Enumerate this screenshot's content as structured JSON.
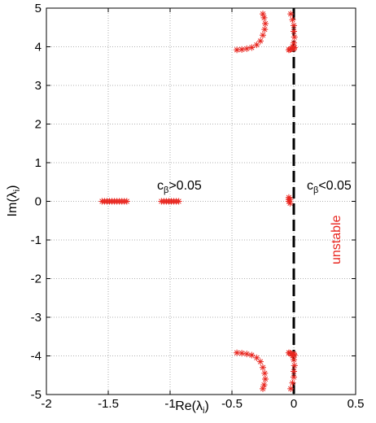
{
  "chart_data": {
    "type": "scatter",
    "title": "",
    "xlabel_main": "Re(λ",
    "xlabel_sub": "i",
    "xlabel_close": ")",
    "ylabel_main": "Im(λ",
    "ylabel_sub": "i",
    "ylabel_close": ")",
    "xlim": [
      -2,
      0.5
    ],
    "ylim": [
      -5,
      5
    ],
    "xticks": [
      -2,
      -1.5,
      -1,
      -0.5,
      0,
      0.5
    ],
    "xtick_labels": [
      "-2",
      "-1.5",
      "-1",
      "-0.5",
      "0",
      "0.5"
    ],
    "yticks": [
      -5,
      -4,
      -3,
      -2,
      -1,
      0,
      1,
      2,
      3,
      4,
      5
    ],
    "ytick_labels": [
      "-5",
      "-4",
      "-3",
      "-2",
      "-1",
      "0",
      "1",
      "2",
      "3",
      "4",
      "5"
    ],
    "grid": true,
    "marker": "*",
    "marker_color": "#e8251e",
    "boundary_line": {
      "x": 0,
      "style": "dashed",
      "color": "#000000"
    },
    "annotations": {
      "left_main": "c",
      "left_sub": "β",
      "left_rest": ">0.05",
      "right_main": "c",
      "right_sub": "β",
      "right_rest": "<0.05",
      "unstable": "unstable"
    },
    "series": [
      {
        "points": [
          [
            -1.55,
            0.0
          ],
          [
            -1.53,
            0.0
          ],
          [
            -1.51,
            0.0
          ],
          [
            -1.49,
            0.0
          ],
          [
            -1.47,
            0.0
          ],
          [
            -1.45,
            0.0
          ],
          [
            -1.43,
            0.0
          ],
          [
            -1.41,
            0.0
          ],
          [
            -1.39,
            0.0
          ],
          [
            -1.37,
            0.0
          ],
          [
            -1.35,
            0.0
          ],
          [
            -1.07,
            0.0
          ],
          [
            -1.05,
            0.0
          ],
          [
            -1.03,
            0.0
          ],
          [
            -1.01,
            0.0
          ],
          [
            -0.99,
            0.0
          ],
          [
            -0.97,
            0.0
          ],
          [
            -0.95,
            0.0
          ],
          [
            -0.93,
            0.0
          ],
          [
            -0.04,
            0.0
          ],
          [
            -0.04,
            0.05
          ],
          [
            -0.04,
            0.1
          ],
          [
            -0.03,
            -0.05
          ],
          [
            -0.03,
            0.05
          ],
          [
            -0.25,
            4.85
          ],
          [
            -0.24,
            4.75
          ],
          [
            -0.23,
            4.6
          ],
          [
            -0.235,
            4.45
          ],
          [
            -0.25,
            4.3
          ],
          [
            -0.27,
            4.15
          ],
          [
            -0.3,
            4.05
          ],
          [
            -0.34,
            3.98
          ],
          [
            -0.38,
            3.95
          ],
          [
            -0.42,
            3.93
          ],
          [
            -0.46,
            3.92
          ],
          [
            -0.025,
            4.85
          ],
          [
            -0.01,
            4.7
          ],
          [
            0.0,
            4.55
          ],
          [
            0.0,
            4.4
          ],
          [
            0.005,
            4.25
          ],
          [
            0.0,
            4.1
          ],
          [
            -0.01,
            4.0
          ],
          [
            -0.02,
            3.95
          ],
          [
            -0.03,
            3.93
          ],
          [
            -0.04,
            3.92
          ],
          [
            0.0,
            3.95
          ],
          [
            0.005,
            3.98
          ],
          [
            -0.25,
            -4.85
          ],
          [
            -0.24,
            -4.75
          ],
          [
            -0.23,
            -4.6
          ],
          [
            -0.235,
            -4.45
          ],
          [
            -0.25,
            -4.3
          ],
          [
            -0.27,
            -4.15
          ],
          [
            -0.3,
            -4.05
          ],
          [
            -0.34,
            -3.98
          ],
          [
            -0.38,
            -3.95
          ],
          [
            -0.42,
            -3.93
          ],
          [
            -0.46,
            -3.92
          ],
          [
            -0.025,
            -4.85
          ],
          [
            -0.01,
            -4.7
          ],
          [
            0.0,
            -4.55
          ],
          [
            0.0,
            -4.4
          ],
          [
            0.005,
            -4.25
          ],
          [
            0.0,
            -4.1
          ],
          [
            -0.01,
            -4.0
          ],
          [
            -0.02,
            -3.95
          ],
          [
            -0.03,
            -3.93
          ],
          [
            -0.04,
            -3.92
          ],
          [
            0.0,
            -3.95
          ],
          [
            0.005,
            -3.98
          ]
        ]
      }
    ]
  }
}
